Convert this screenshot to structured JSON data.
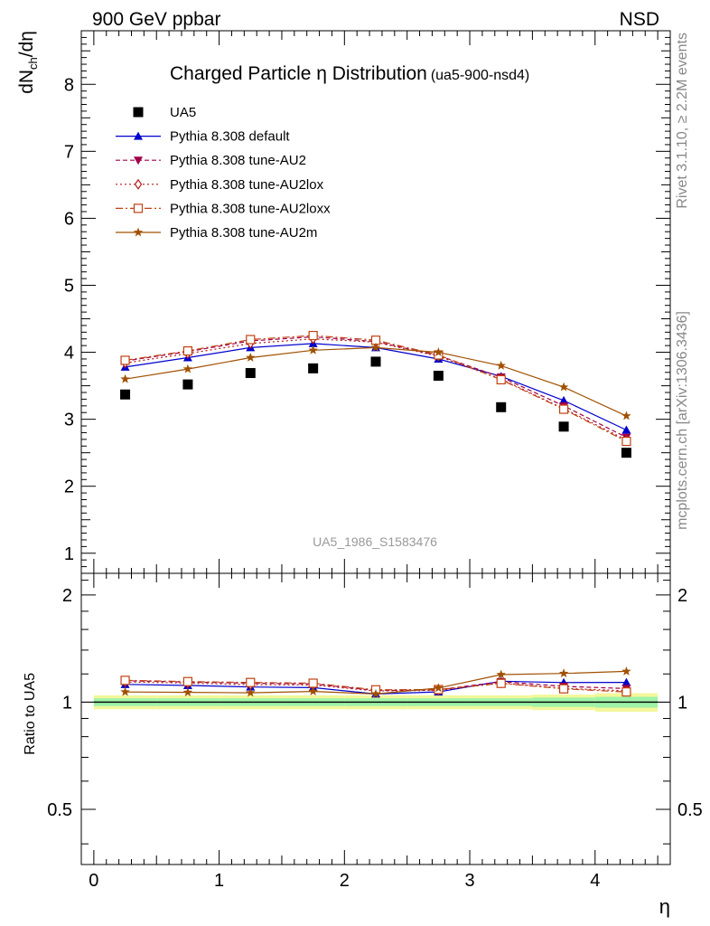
{
  "header": {
    "left": "900 GeV ppbar",
    "right": "NSD"
  },
  "side_labels": {
    "rivet": "Rivet 3.1.10, ≥ 2.2M events",
    "mcplots": "mcplots.cern.ch [arXiv:1306.3436]"
  },
  "chart_data": {
    "type": "scatter",
    "title": "Charged Particle η Distribution",
    "subtitle": "(ua5-900-nsd4)",
    "watermark": "UA5_1986_S1583476",
    "xlabel": "η",
    "ylabel_main": "dNch/dη",
    "ylabel_ratio": "Ratio to UA5",
    "xlim": [
      -0.1,
      4.6
    ],
    "ylim_main": [
      0.7,
      8.8
    ],
    "ylim_ratio": [
      0.35,
      2.3
    ],
    "ratio_scale": "log",
    "x_ticks": [
      "0",
      "1",
      "2",
      "3",
      "4"
    ],
    "y_ticks_main": [
      "1",
      "2",
      "3",
      "4",
      "5",
      "6",
      "7",
      "8"
    ],
    "y_ticks_ratio": [
      "0.5",
      "1",
      "2"
    ],
    "legend_position": "top-left",
    "grid": false,
    "x": [
      0.25,
      0.75,
      1.25,
      1.75,
      2.25,
      2.75,
      3.25,
      3.75,
      4.25
    ],
    "data": {
      "name": "UA5",
      "values": [
        3.37,
        3.52,
        3.69,
        3.76,
        3.86,
        3.65,
        3.18,
        2.89,
        2.5
      ]
    },
    "band": {
      "inner": [
        0.025,
        0.025,
        0.025,
        0.025,
        0.025,
        0.025,
        0.025,
        0.03,
        0.035
      ],
      "outer": [
        0.045,
        0.045,
        0.045,
        0.045,
        0.045,
        0.045,
        0.045,
        0.05,
        0.06
      ]
    },
    "series": [
      {
        "name": "Pythia 8.308 default",
        "color": "#0000cc",
        "marker": "triangle-up",
        "dash": "",
        "values": [
          3.78,
          3.92,
          4.07,
          4.13,
          4.07,
          3.9,
          3.64,
          3.28,
          2.84
        ]
      },
      {
        "name": "Pythia 8.308 tune-AU2",
        "color": "#a0004a",
        "marker": "triangle-down",
        "dash": "5,3",
        "values": [
          3.87,
          4.01,
          4.17,
          4.23,
          4.16,
          3.95,
          3.63,
          3.2,
          2.73
        ]
      },
      {
        "name": "Pythia 8.308 tune-AU2lox",
        "color": "#b01818",
        "marker": "diamond-open",
        "dash": "2,3",
        "values": [
          3.84,
          3.98,
          4.13,
          4.2,
          4.15,
          3.94,
          3.6,
          3.16,
          2.69
        ]
      },
      {
        "name": "Pythia 8.308 tune-AU2loxx",
        "color": "#c04010",
        "marker": "square-open",
        "dash": "8,3,2,3",
        "values": [
          3.88,
          4.02,
          4.19,
          4.25,
          4.18,
          3.96,
          3.59,
          3.15,
          2.67
        ]
      },
      {
        "name": "Pythia 8.308 tune-AU2m",
        "color": "#a05000",
        "marker": "star",
        "dash": "",
        "values": [
          3.6,
          3.75,
          3.92,
          4.03,
          4.07,
          4.0,
          3.8,
          3.48,
          3.05
        ]
      }
    ]
  }
}
